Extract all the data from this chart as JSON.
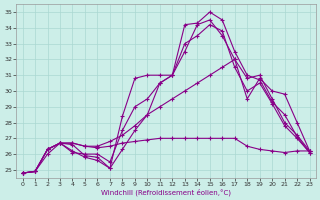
{
  "xlabel": "Windchill (Refroidissement éolien,°C)",
  "background_color": "#cceee8",
  "grid_color": "#aad8d2",
  "line_color": "#880088",
  "xlim": [
    -0.5,
    23.5
  ],
  "ylim": [
    24.5,
    35.5
  ],
  "yticks": [
    25,
    26,
    27,
    28,
    29,
    30,
    31,
    32,
    33,
    34,
    35
  ],
  "xticks": [
    0,
    1,
    2,
    3,
    4,
    5,
    6,
    7,
    8,
    9,
    10,
    11,
    12,
    13,
    14,
    15,
    16,
    17,
    18,
    19,
    20,
    21,
    22,
    23
  ],
  "lines": [
    {
      "x": [
        0,
        1,
        2,
        3,
        4,
        5,
        6,
        7,
        8,
        9,
        10,
        11,
        12,
        13,
        14,
        15,
        16,
        17,
        18,
        19,
        20,
        21,
        22,
        23
      ],
      "y": [
        24.8,
        24.9,
        26.3,
        26.7,
        26.6,
        25.9,
        25.8,
        25.1,
        28.4,
        30.8,
        31.0,
        31.0,
        31.0,
        34.2,
        34.3,
        35.0,
        34.5,
        32.5,
        31.0,
        30.7,
        29.3,
        28.5,
        27.1,
        26.1
      ]
    },
    {
      "x": [
        0,
        1,
        2,
        3,
        4,
        5,
        6,
        7,
        8,
        9,
        10,
        11,
        12,
        13,
        14,
        15,
        16,
        17,
        18,
        19,
        20,
        21,
        22,
        23
      ],
      "y": [
        24.8,
        24.9,
        26.3,
        26.7,
        26.1,
        26.0,
        26.0,
        25.5,
        27.5,
        29.0,
        29.5,
        30.5,
        31.0,
        32.5,
        34.2,
        34.5,
        33.5,
        32.0,
        30.8,
        31.0,
        29.5,
        28.0,
        27.2,
        26.2
      ]
    },
    {
      "x": [
        0,
        1,
        2,
        3,
        4,
        5,
        6,
        7,
        8,
        9,
        10,
        11,
        12,
        13,
        14,
        15,
        16,
        17,
        18,
        19,
        20,
        21,
        22,
        23
      ],
      "y": [
        24.8,
        24.9,
        26.0,
        26.7,
        26.2,
        25.8,
        25.6,
        25.1,
        26.3,
        27.5,
        28.5,
        30.5,
        31.0,
        33.0,
        33.5,
        34.2,
        33.8,
        31.5,
        30.0,
        30.5,
        29.2,
        27.8,
        27.0,
        26.1
      ]
    },
    {
      "x": [
        0,
        1,
        2,
        3,
        4,
        5,
        6,
        7,
        8,
        9,
        10,
        11,
        12,
        13,
        14,
        15,
        16,
        17,
        18,
        19,
        20,
        21,
        22,
        23
      ],
      "y": [
        24.8,
        24.9,
        26.3,
        26.7,
        26.7,
        26.5,
        26.5,
        26.8,
        27.2,
        27.8,
        28.5,
        29.0,
        29.5,
        30.0,
        30.5,
        31.0,
        31.5,
        32.0,
        29.5,
        30.8,
        30.0,
        29.8,
        28.0,
        26.2
      ]
    },
    {
      "x": [
        0,
        1,
        2,
        3,
        4,
        5,
        6,
        7,
        8,
        9,
        10,
        11,
        12,
        13,
        14,
        15,
        16,
        17,
        18,
        19,
        20,
        21,
        22,
        23
      ],
      "y": [
        24.8,
        24.9,
        26.3,
        26.7,
        26.7,
        26.5,
        26.4,
        26.5,
        26.7,
        26.8,
        26.9,
        27.0,
        27.0,
        27.0,
        27.0,
        27.0,
        27.0,
        27.0,
        26.5,
        26.3,
        26.2,
        26.1,
        26.2,
        26.2
      ]
    }
  ],
  "marker": "+",
  "markersize": 3,
  "linewidth": 0.8
}
